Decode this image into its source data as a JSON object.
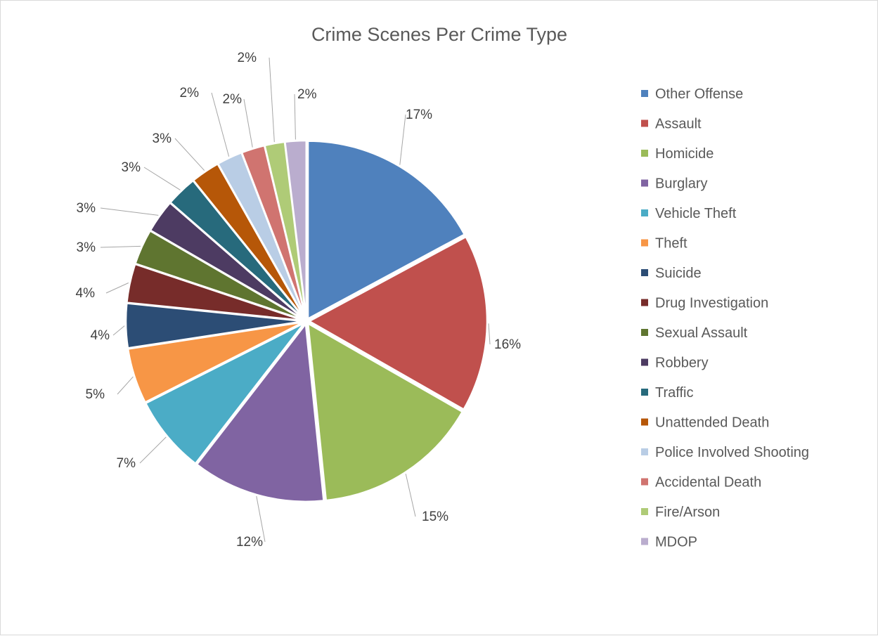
{
  "chart_data": {
    "type": "pie",
    "title": "Crime Scenes Per Crime Type",
    "legend_position": "right",
    "start_angle_deg": 0,
    "direction": "clockwise",
    "exploded": true,
    "series": [
      {
        "name": "Other Offense",
        "value": 17,
        "label": "17%",
        "color": "#4F81BD"
      },
      {
        "name": "Assault",
        "value": 16,
        "label": "16%",
        "color": "#C0504D"
      },
      {
        "name": "Homicide",
        "value": 15,
        "label": "15%",
        "color": "#9BBB59"
      },
      {
        "name": "Burglary",
        "value": 12,
        "label": "12%",
        "color": "#8064A2"
      },
      {
        "name": "Vehicle Theft",
        "value": 7,
        "label": "7%",
        "color": "#4BACC6"
      },
      {
        "name": "Theft",
        "value": 5,
        "label": "5%",
        "color": "#F79646"
      },
      {
        "name": "Suicide",
        "value": 4,
        "label": "4%",
        "color": "#2C4D75"
      },
      {
        "name": "Drug Investigation",
        "value": 3.5,
        "label": "4%",
        "color": "#772C2A"
      },
      {
        "name": "Sexual Assault",
        "value": 3.2,
        "label": "3%",
        "color": "#5F7530"
      },
      {
        "name": "Robbery",
        "value": 3,
        "label": "3%",
        "color": "#4D3B62"
      },
      {
        "name": "Traffic",
        "value": 2.8,
        "label": "3%",
        "color": "#276A7C"
      },
      {
        "name": "Unattended Death",
        "value": 2.6,
        "label": "3%",
        "color": "#B65708"
      },
      {
        "name": "Police Involved Shooting",
        "value": 2.3,
        "label": "2%",
        "color": "#B9CDE5"
      },
      {
        "name": "Accidental Death",
        "value": 2.1,
        "label": "2%",
        "color": "#D07470"
      },
      {
        "name": "Fire/Arson",
        "value": 1.8,
        "label": "2%",
        "color": "#AFCB77"
      },
      {
        "name": "MDOP",
        "value": 1.9,
        "label": "2%",
        "color": "#BAADCE"
      }
    ]
  }
}
